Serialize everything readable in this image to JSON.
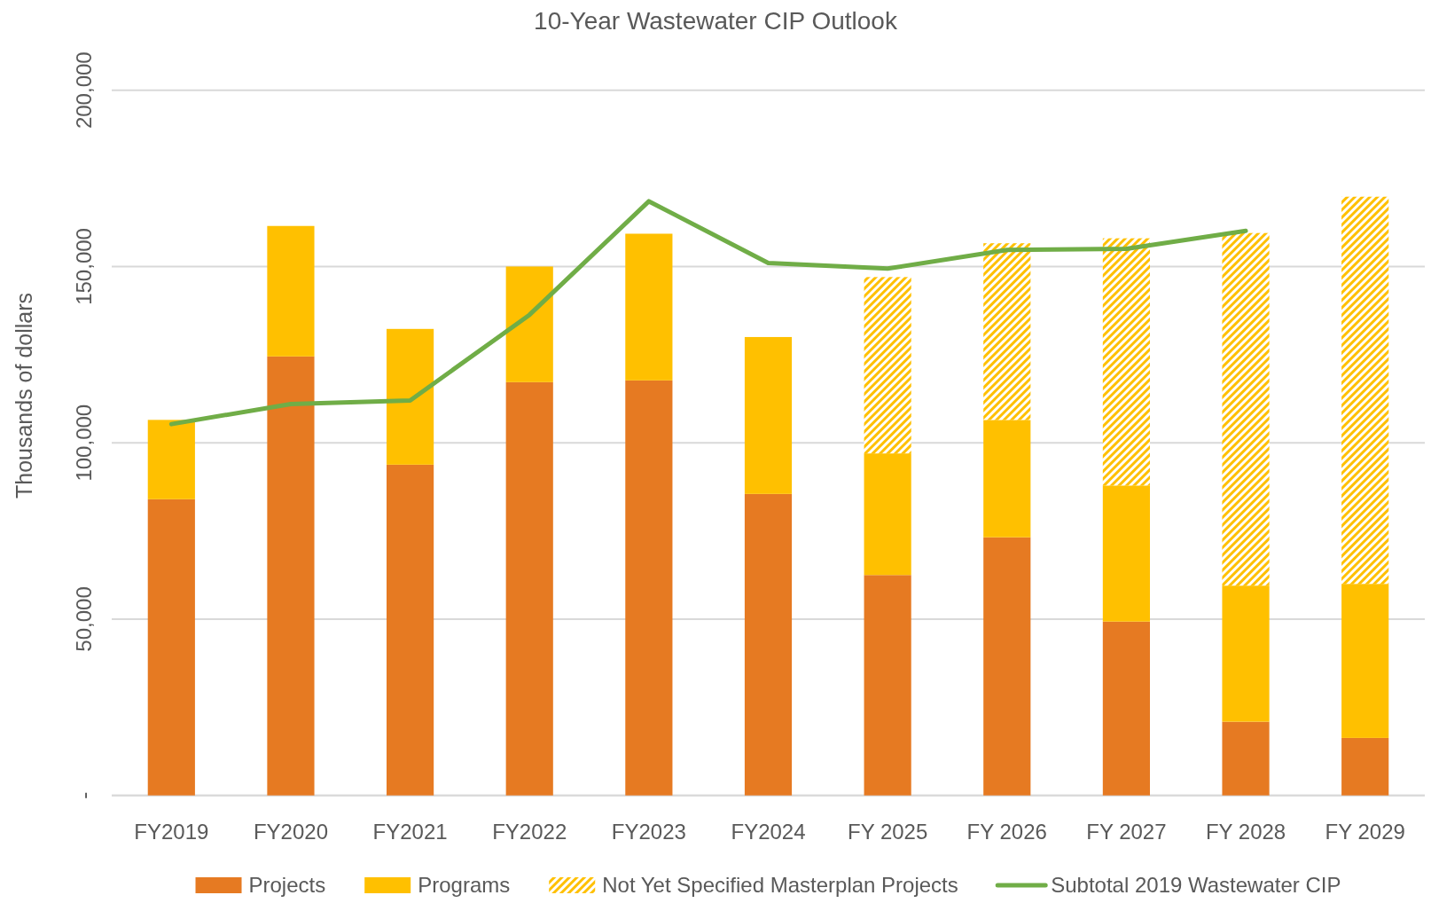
{
  "chart_data": {
    "type": "bar",
    "title": "10-Year Wastewater CIP Outlook",
    "ylabel": "Thousands of dollars",
    "categories": [
      "FY2019",
      "FY2020",
      "FY2021",
      "FY2022",
      "FY2023",
      "FY2024",
      "FY 2025",
      "FY 2026",
      "FY 2027",
      "FY 2028",
      "FY 2029"
    ],
    "stacked": true,
    "series": [
      {
        "name": "Projects",
        "color": "#e67a22",
        "values": [
          84000,
          124500,
          93800,
          117200,
          117700,
          85500,
          62500,
          73200,
          49300,
          20900,
          16300
        ]
      },
      {
        "name": "Programs",
        "color": "#ffc000",
        "values": [
          22500,
          37000,
          38500,
          32800,
          41600,
          44500,
          34500,
          33300,
          38600,
          38600,
          43700
        ]
      },
      {
        "name": "Not Yet Specified Masterplan Projects",
        "color": "#ffc000",
        "values": [
          null,
          null,
          null,
          null,
          null,
          null,
          50000,
          50100,
          70100,
          100000,
          109800
        ]
      },
      {
        "name": "Subtotal 2019 Wastewater CIP",
        "type": "line",
        "color": "#70ad47",
        "values": [
          105300,
          111000,
          112000,
          136300,
          168500,
          151000,
          149400,
          154700,
          155000,
          160100,
          null
        ]
      }
    ],
    "ylim": [
      0,
      200000
    ],
    "yticks": [
      {
        "value": 0,
        "label": "-"
      },
      {
        "value": 50000,
        "label": "50,000"
      },
      {
        "value": 100000,
        "label": "100,000"
      },
      {
        "value": 150000,
        "label": "150,000"
      },
      {
        "value": 200000,
        "label": "200,000"
      }
    ],
    "grid": "y",
    "legend": "bottom"
  }
}
